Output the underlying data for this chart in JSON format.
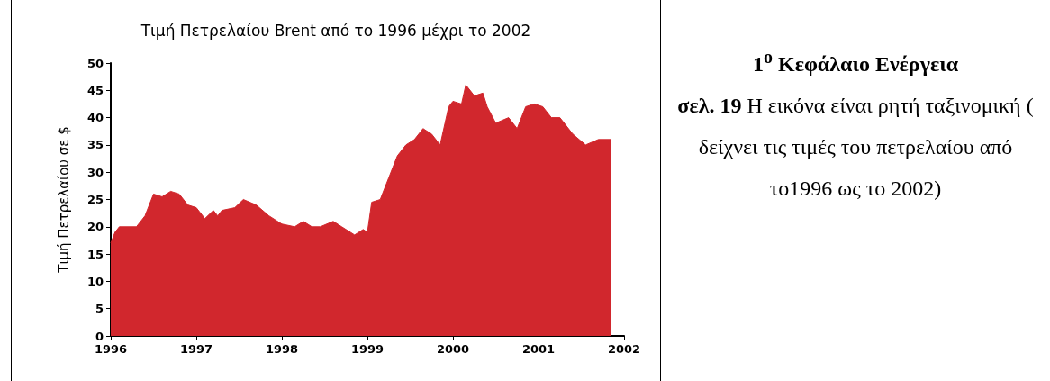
{
  "chart_data": [
    {
      "type": "area",
      "title": "Τιμή Πετρελαίου Brent από το 1996 μέχρι το 2002",
      "ylabel": "Τιμή Πετρελαίου σε $",
      "color": "#d1272d",
      "x": [
        1996.0,
        1996.05,
        1996.1,
        1996.2,
        1996.3,
        1996.4,
        1996.5,
        1996.6,
        1996.7,
        1996.8,
        1996.9,
        1997.0,
        1997.1,
        1997.2,
        1997.25,
        1997.3,
        1997.45,
        1997.55,
        1997.7,
        1997.85,
        1998.0,
        1998.15,
        1998.25,
        1998.35,
        1998.45,
        1998.6,
        1998.7,
        1998.85,
        1998.95,
        1999.0,
        1999.05,
        1999.15,
        1999.25,
        1999.35,
        1999.45,
        1999.55,
        1999.65,
        1999.75,
        1999.85,
        1999.95,
        2000.0,
        2000.1,
        2000.15,
        2000.25,
        2000.35,
        2000.4,
        2000.5,
        2000.65,
        2000.75,
        2000.85,
        2000.95,
        2001.05,
        2001.15,
        2001.25,
        2001.4,
        2001.55,
        2001.7,
        2001.85
      ],
      "values": [
        17,
        19,
        20,
        20,
        20,
        22,
        26,
        25.5,
        26.5,
        26,
        24,
        23.5,
        21.5,
        23,
        22,
        23,
        23.5,
        25,
        24,
        22,
        20.5,
        20,
        21,
        20,
        20,
        21,
        20,
        18.5,
        19.5,
        19,
        24.5,
        25,
        29,
        33,
        35,
        36,
        38,
        37,
        35,
        42,
        43,
        42.5,
        46,
        44,
        44.5,
        42,
        39,
        40,
        38,
        42,
        42.5,
        42,
        40,
        40,
        37,
        35,
        36,
        36
      ],
      "xlim": [
        1996,
        2002
      ],
      "xticks": [
        1996,
        1997,
        1998,
        1999,
        2000,
        2001,
        2002
      ],
      "ylim": [
        0,
        50
      ],
      "yticks": [
        0,
        5,
        10,
        15,
        20,
        25,
        30,
        35,
        40,
        45,
        50
      ],
      "grid": false
    },
    {
      "type": "other",
      "title": "1$^{ο}$ Κεφάλαιο Ενέργεια",
      "annotations": [
        "σελ. 19",
        "Η εικόνα είναι ρητή ταξινομική",
        "( δείχνει τις τιμές του πετρελαίου από το1996  ως το 2002)"
      ]
    }
  ]
}
